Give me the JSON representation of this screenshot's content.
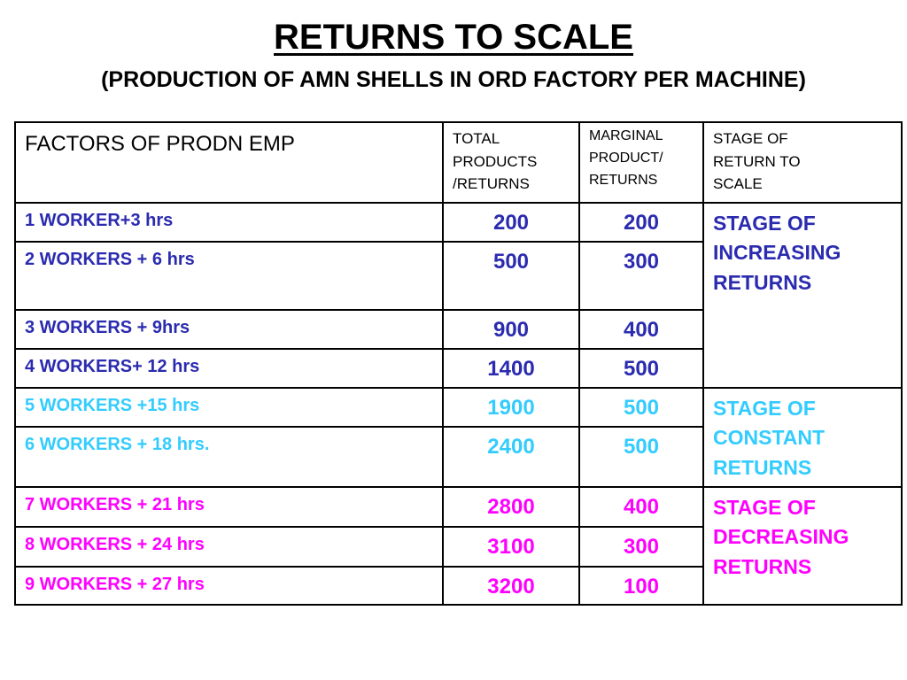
{
  "title": "RETURNS TO SCALE",
  "subtitle": "(PRODUCTION OF AMN SHELLS IN ORD FACTORY PER MACHINE)",
  "table": {
    "headers": {
      "factors": "FACTORS OF PRODN EMP",
      "total_line1": "TOTAL",
      "total_line2": "PRODUCTS",
      "total_line3": "/RETURNS",
      "marginal_line1": "MARGINAL",
      "marginal_line2": "PRODUCT/",
      "marginal_line3": "RETURNS",
      "stage_line1": "STAGE OF",
      "stage_line2": "RETURN TO",
      "stage_line3": "SCALE"
    },
    "rows": [
      {
        "factor": "1 WORKER+3 hrs",
        "total": "200",
        "marginal": "200"
      },
      {
        "factor": "2 WORKERS + 6 hrs",
        "total": "500",
        "marginal": "300"
      },
      {
        "factor": "3 WORKERS + 9hrs",
        "total": "900",
        "marginal": "400"
      },
      {
        "factor": "4 WORKERS+ 12 hrs",
        "total": "1400",
        "marginal": "500"
      },
      {
        "factor": "5 WORKERS +15 hrs",
        "total": "1900",
        "marginal": "500"
      },
      {
        "factor": "6 WORKERS + 18 hrs.",
        "total": "2400",
        "marginal": "500"
      },
      {
        "factor": "7 WORKERS + 21 hrs",
        "total": "2800",
        "marginal": "400"
      },
      {
        "factor": "8 WORKERS + 24 hrs",
        "total": "3100",
        "marginal": "300"
      },
      {
        "factor": "9 WORKERS + 27 hrs",
        "total": "3200",
        "marginal": "100"
      }
    ],
    "stages": {
      "increasing": {
        "line1": "STAGE OF",
        "line2": "INCREASING",
        "line3": "RETURNS"
      },
      "constant": {
        "line1": "STAGE OF",
        "line2": "CONSTANT",
        "line3": "RETURNS"
      },
      "decreasing": {
        "line1": "STAGE OF",
        "line2": "DECREASING",
        "line3": "RETURNS"
      }
    }
  },
  "colors": {
    "increasing": "#2b2bb0",
    "constant": "#33ccff",
    "decreasing": "#ff00ff",
    "header": "#000000"
  }
}
